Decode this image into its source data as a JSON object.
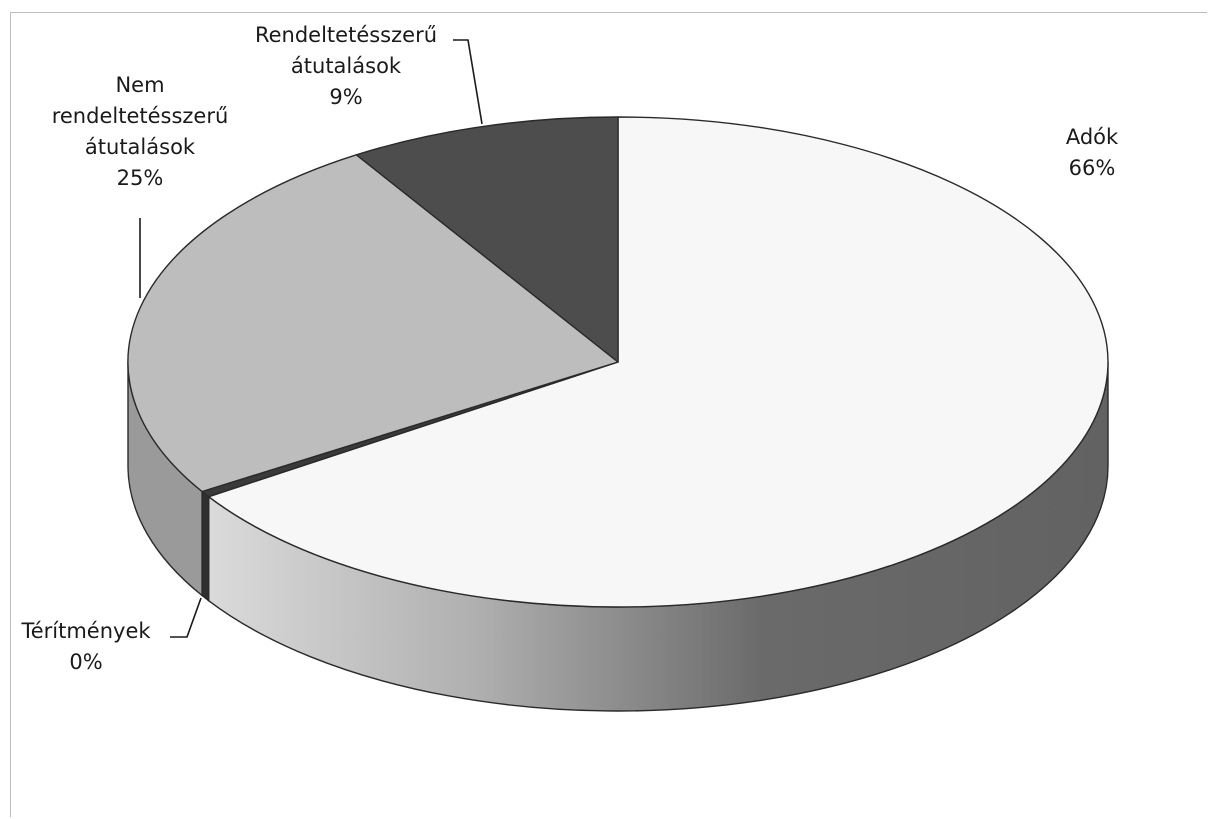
{
  "chart_data": {
    "type": "pie",
    "style": "3d",
    "title": "",
    "slices": [
      {
        "label_lines": [
          "Adók"
        ],
        "label": "Adók",
        "percent_label": "66%",
        "value": 66,
        "color": "#f7f7f7"
      },
      {
        "label_lines": [
          "Térítmények"
        ],
        "label": "Térítmények",
        "percent_label": "0%",
        "value": 0.4,
        "color": "#3a3a3a"
      },
      {
        "label_lines": [
          "Nem",
          "rendeltetésszerű",
          "átutalások"
        ],
        "label": "Nem rendeltetésszerű átutalások",
        "percent_label": "25%",
        "value": 25,
        "color": "#bdbdbd"
      },
      {
        "label_lines": [
          "Rendeltetésszerű",
          "átutalások"
        ],
        "label": "Rendeltetésszerű átutalások",
        "percent_label": "9%",
        "value": 9,
        "color": "#4d4d4d"
      }
    ],
    "legend": "none",
    "colors": {
      "outline": "#2a2a2a",
      "frame": "#bdbdbd"
    }
  }
}
